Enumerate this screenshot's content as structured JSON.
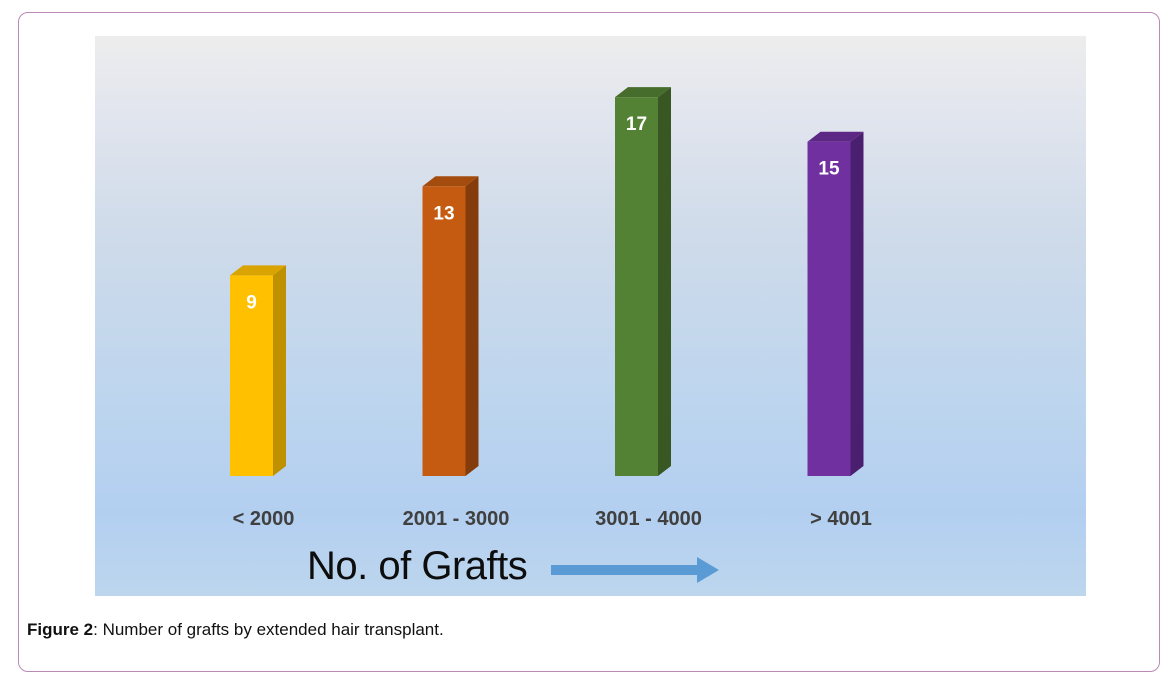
{
  "chart_data": {
    "type": "bar",
    "categories": [
      "< 2000",
      "2001 - 3000",
      "3001 - 4000",
      "> 4001"
    ],
    "values": [
      9,
      13,
      17,
      15
    ],
    "xlabel": "No. of Grafts",
    "ylabel": "",
    "ylim": [
      0,
      17.5
    ],
    "colors": [
      "#ffc000",
      "#c55a11",
      "#548235",
      "#7030a0"
    ],
    "side_colors": [
      "#bf9000",
      "#843c0c",
      "#385723",
      "#4b1f6f"
    ],
    "top_colors": [
      "#d9a300",
      "#a44b0e",
      "#466d2c",
      "#5d2785"
    ],
    "grid": false,
    "legend": "none",
    "style": "3d-column"
  },
  "caption": {
    "label": "Figure 2",
    "text": ": Number of grafts by extended hair transplant."
  },
  "arrow_color": "#5b9bd5"
}
